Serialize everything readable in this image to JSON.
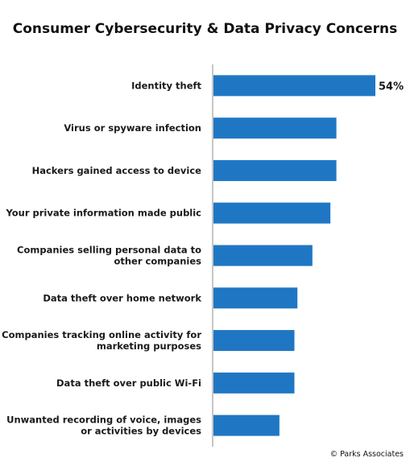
{
  "chart_data": {
    "type": "bar",
    "orientation": "horizontal",
    "title": "Consumer Cybersecurity & Data Privacy Concerns",
    "categories": [
      "Identity theft",
      "Virus or spyware infection",
      "Hackers gained access to device",
      "Your private information made public",
      "Companies selling personal data to other companies",
      "Data theft over home network",
      "Companies tracking online activity for marketing purposes",
      "Data theft over public Wi-Fi",
      "Unwanted recording of voice, images or activities by devices"
    ],
    "category_lines": [
      [
        "Identity theft"
      ],
      [
        "Virus or spyware infection"
      ],
      [
        "Hackers gained access to device"
      ],
      [
        "Your private information made public"
      ],
      [
        "Companies selling personal data to",
        "other companies"
      ],
      [
        "Data theft over home network"
      ],
      [
        "Companies tracking online activity for",
        "marketing purposes"
      ],
      [
        "Data theft over public Wi-Fi"
      ],
      [
        "Unwanted recording of voice, images",
        "or activities by devices"
      ]
    ],
    "values": [
      54,
      41,
      41,
      39,
      33,
      28,
      27,
      27,
      22
    ],
    "data_labels": [
      "54%",
      "",
      "",
      "",
      "",
      "",
      "",
      "",
      ""
    ],
    "unit": "%",
    "xlim": [
      0,
      54
    ],
    "xlabel": "",
    "ylabel": "",
    "grid": false,
    "legend": "none",
    "bar_color": "#1f77c4",
    "axis_color": "#8c8c8c"
  },
  "footer": {
    "copyright": "© Parks Associates"
  }
}
